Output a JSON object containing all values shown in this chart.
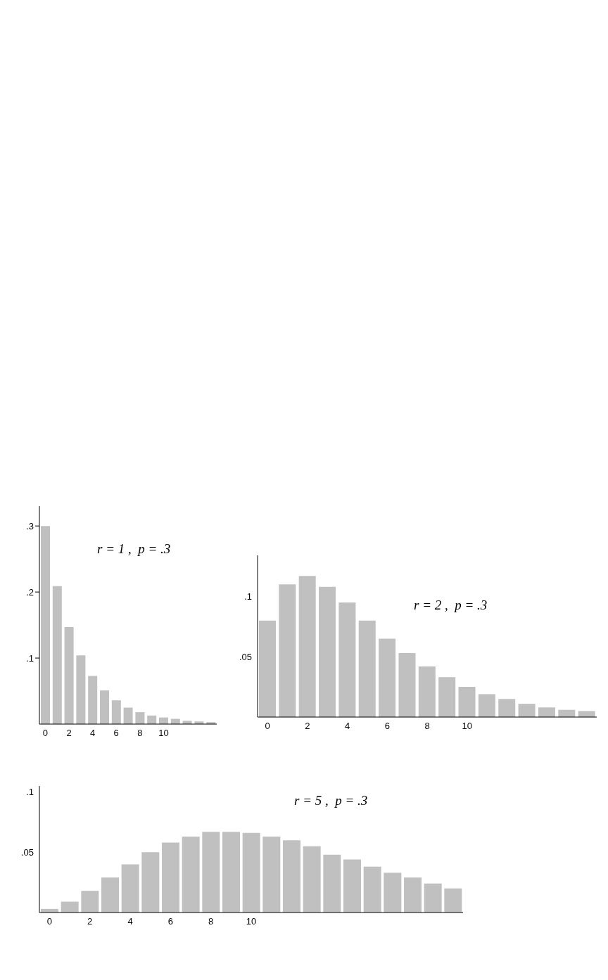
{
  "chart_data": [
    {
      "type": "bar",
      "categories": [
        "0",
        null,
        "2",
        null,
        "4",
        null,
        "6",
        null,
        "8",
        null,
        "10",
        null,
        null,
        null,
        null
      ],
      "values": [
        0.3,
        0.209,
        0.147,
        0.104,
        0.073,
        0.051,
        0.036,
        0.025,
        0.018,
        0.013,
        0.01,
        0.008,
        0.005,
        0.004,
        0.003
      ],
      "color": "#c0c0c0",
      "ylim": [
        0,
        0.33
      ],
      "yticks": [
        {
          "value": 0.1,
          "label": ".1"
        },
        {
          "value": 0.2,
          "label": ".2"
        },
        {
          "value": 0.3,
          "label": ".3"
        }
      ],
      "annotations": [
        "r = 1 ,  p = .3"
      ]
    },
    {
      "type": "bar",
      "categories": [
        "0",
        null,
        "2",
        null,
        "4",
        null,
        "6",
        null,
        "8",
        null,
        "10",
        null,
        null,
        null,
        null,
        null,
        null
      ],
      "values": [
        0.08,
        0.11,
        0.117,
        0.108,
        0.095,
        0.08,
        0.065,
        0.053,
        0.042,
        0.033,
        0.025,
        0.019,
        0.015,
        0.011,
        0.008,
        0.006,
        0.005
      ],
      "color": "#c0c0c0",
      "ylim": [
        0,
        0.134
      ],
      "yticks": [
        {
          "value": 0.05,
          "label": ".05"
        },
        {
          "value": 0.1,
          "label": ".1"
        }
      ],
      "annotations": [
        "r = 2 ,  p = .3"
      ]
    },
    {
      "type": "bar",
      "categories": [
        "0",
        null,
        "2",
        null,
        "4",
        null,
        "6",
        null,
        "8",
        null,
        "10",
        null,
        null,
        null,
        null,
        null,
        null,
        null,
        null,
        null,
        null
      ],
      "values": [
        0.003,
        0.009,
        0.018,
        0.029,
        0.04,
        0.05,
        0.058,
        0.063,
        0.067,
        0.067,
        0.066,
        0.063,
        0.06,
        0.055,
        0.048,
        0.044,
        0.038,
        0.033,
        0.029,
        0.024,
        0.02
      ],
      "color": "#c0c0c0",
      "ylim": [
        0,
        0.105
      ],
      "yticks": [
        {
          "value": 0.05,
          "label": ".05"
        },
        {
          "value": 0.1,
          "label": ".1"
        }
      ],
      "annotations": [
        "r = 5 ,  p = .3"
      ]
    }
  ]
}
